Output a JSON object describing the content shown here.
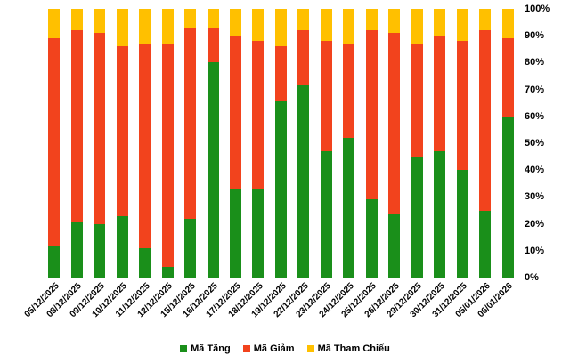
{
  "chart_data": {
    "type": "bar",
    "stacked": true,
    "percent": true,
    "title": "",
    "xlabel": "",
    "ylabel": "",
    "ylim": [
      0,
      100
    ],
    "grid": false,
    "legend_position": "bottom",
    "y_ticks": [
      "0%",
      "10%",
      "20%",
      "30%",
      "40%",
      "50%",
      "60%",
      "70%",
      "80%",
      "90%",
      "100%"
    ],
    "categories": [
      "05/12/2025",
      "08/12/2025",
      "09/12/2025",
      "10/12/2025",
      "11/12/2025",
      "12/12/2025",
      "15/12/2025",
      "16/12/2025",
      "17/12/2025",
      "18/12/2025",
      "19/12/2025",
      "22/12/2025",
      "23/12/2025",
      "24/12/2025",
      "25/12/2025",
      "26/12/2025",
      "29/12/2025",
      "30/12/2025",
      "31/12/2025",
      "05/01/2026",
      "06/01/2026"
    ],
    "series": [
      {
        "name": "Mã Tăng",
        "color": "#1a8f1a",
        "values": [
          12,
          21,
          20,
          23,
          11,
          4,
          22,
          80,
          33,
          33,
          66,
          72,
          47,
          52,
          29,
          24,
          45,
          47,
          40,
          25,
          60
        ]
      },
      {
        "name": "Mã Giảm",
        "color": "#f2431d",
        "values": [
          77,
          71,
          71,
          63,
          76,
          83,
          71,
          13,
          57,
          55,
          20,
          20,
          41,
          35,
          63,
          67,
          42,
          43,
          48,
          67,
          29
        ]
      },
      {
        "name": "Mã Tham Chiếu",
        "color": "#ffc000",
        "values": [
          11,
          8,
          9,
          14,
          13,
          13,
          7,
          7,
          10,
          12,
          14,
          8,
          12,
          13,
          8,
          9,
          13,
          10,
          12,
          8,
          11
        ]
      }
    ]
  }
}
